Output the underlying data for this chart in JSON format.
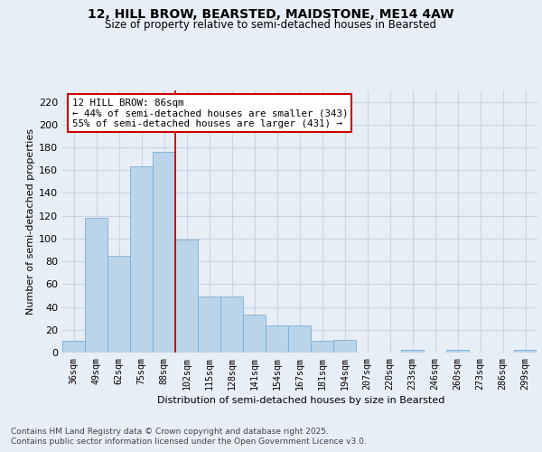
{
  "title_line1": "12, HILL BROW, BEARSTED, MAIDSTONE, ME14 4AW",
  "title_line2": "Size of property relative to semi-detached houses in Bearsted",
  "xlabel": "Distribution of semi-detached houses by size in Bearsted",
  "ylabel": "Number of semi-detached properties",
  "categories": [
    "36sqm",
    "49sqm",
    "62sqm",
    "75sqm",
    "88sqm",
    "102sqm",
    "115sqm",
    "128sqm",
    "141sqm",
    "154sqm",
    "167sqm",
    "181sqm",
    "194sqm",
    "207sqm",
    "220sqm",
    "233sqm",
    "246sqm",
    "260sqm",
    "273sqm",
    "286sqm",
    "299sqm"
  ],
  "values": [
    10,
    118,
    85,
    163,
    176,
    99,
    49,
    49,
    33,
    24,
    24,
    10,
    11,
    0,
    0,
    2,
    0,
    2,
    0,
    0,
    2
  ],
  "bar_color": "#bad4ea",
  "bar_edge_color": "#7aafd4",
  "grid_color": "#c8d4e4",
  "background_color": "#e8eef5",
  "vline_x": 4.5,
  "vline_color": "#cc0000",
  "annotation_text": "12 HILL BROW: 86sqm\n← 44% of semi-detached houses are smaller (343)\n55% of semi-detached houses are larger (431) →",
  "annotation_box_color": "#ffffff",
  "annotation_box_edge": "#cc0000",
  "footer_line1": "Contains HM Land Registry data © Crown copyright and database right 2025.",
  "footer_line2": "Contains public sector information licensed under the Open Government Licence v3.0.",
  "ylim": [
    0,
    230
  ],
  "yticks": [
    0,
    20,
    40,
    60,
    80,
    100,
    120,
    140,
    160,
    180,
    200,
    220
  ]
}
